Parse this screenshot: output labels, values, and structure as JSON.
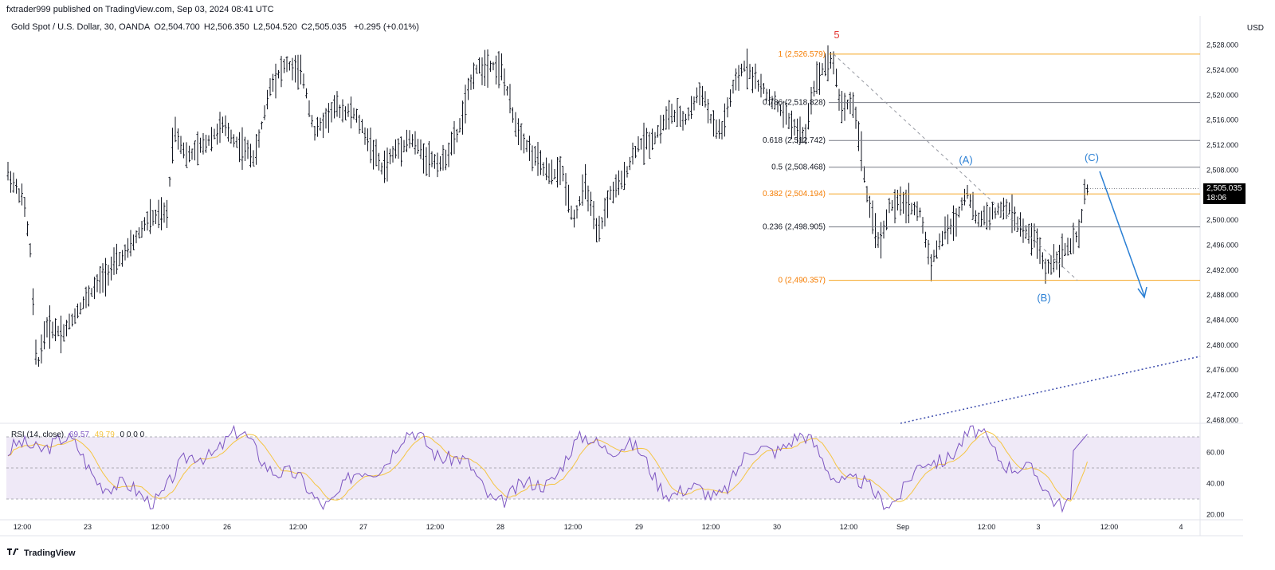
{
  "header": {
    "published": "fxtrader999 published on TradingView.com, Sep 03, 2024 08:41 UTC",
    "symbol": "Gold Spot / U.S. Dollar, 30, OANDA",
    "open": "O2,504.700",
    "high": "H2,506.350",
    "low": "L2,504.520",
    "close": "C2,505.035",
    "change": "+0.295 (+0.01%)"
  },
  "currency": "USD",
  "last_price": "2,505.035",
  "countdown": "18:06",
  "rsi": {
    "label": "RSI (14, close)",
    "value": "69.57",
    "ma": "49.79",
    "extra": "0 0 0 0"
  },
  "footer": {
    "brand": "TradingView"
  },
  "colors": {
    "fib_orange": "#f5a623",
    "fib_gray": "#787b86",
    "wave_blue": "#2a7fd4",
    "rsi_line": "#7e57c2",
    "rsi_ma": "#f5c542",
    "rsi_band": "#ede7f6",
    "red": "#e53935"
  },
  "chart_data": {
    "type": "ohlc",
    "title": "Gold Spot / U.S. Dollar, 30, OANDA",
    "ylim": [
      2466,
      2530
    ],
    "y_ticks": [
      "2,528.000",
      "2,524.000",
      "2,520.000",
      "2,516.000",
      "2,512.000",
      "2,508.000",
      "2,504.000",
      "2,500.000",
      "2,496.000",
      "2,492.000",
      "2,488.000",
      "2,484.000",
      "2,480.000",
      "2,476.000",
      "2,472.000",
      "2,468.000"
    ],
    "x_ticks": [
      "12:00",
      "23",
      "12:00",
      "26",
      "12:00",
      "27",
      "12:00",
      "28",
      "12:00",
      "29",
      "12:00",
      "30",
      "12:00",
      "Sep",
      "12:00",
      "3",
      "12:00",
      "4"
    ],
    "rsi_ticks": [
      "60.00",
      "40.00",
      "20.00"
    ],
    "fib_levels": [
      {
        "label": "1 (2,526.579)",
        "price": 2526.579,
        "color": "orange"
      },
      {
        "label": "0.786 (2,518.828)",
        "price": 2518.828,
        "color": "gray"
      },
      {
        "label": "0.618 (2,512.742)",
        "price": 2512.742,
        "color": "gray"
      },
      {
        "label": "0.5 (2,508.468)",
        "price": 2508.468,
        "color": "gray"
      },
      {
        "label": "0.382 (2,504.194)",
        "price": 2504.194,
        "color": "orange"
      },
      {
        "label": "0.236 (2,498.905)",
        "price": 2498.905,
        "color": "gray"
      },
      {
        "label": "0 (2,490.357)",
        "price": 2490.357,
        "color": "orange"
      }
    ],
    "wave_labels": [
      {
        "text": "5",
        "color": "red"
      },
      {
        "text": "(A)",
        "color": "blue"
      },
      {
        "text": "(B)",
        "color": "blue"
      },
      {
        "text": "(C)",
        "color": "blue"
      }
    ]
  }
}
